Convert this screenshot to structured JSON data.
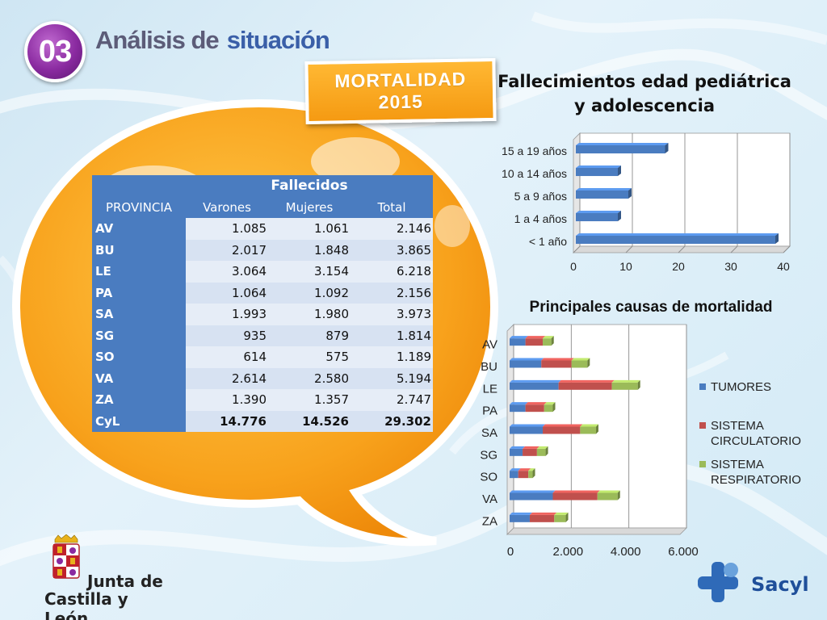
{
  "header": {
    "number": "03",
    "title_part1": "Análisis de",
    "title_part2": "situación"
  },
  "badge": {
    "line1": "MORTALIDAD",
    "line2": "2015"
  },
  "table": {
    "group_header": "Fallecidos",
    "col_province": "PROVINCIA",
    "col_men": "Varones",
    "col_women": "Mujeres",
    "col_total": "Total",
    "rows": [
      {
        "prov": "AV",
        "men": "1.085",
        "women": "1.061",
        "total": "2.146"
      },
      {
        "prov": "BU",
        "men": "2.017",
        "women": "1.848",
        "total": "3.865"
      },
      {
        "prov": "LE",
        "men": "3.064",
        "women": "3.154",
        "total": "6.218"
      },
      {
        "prov": "PA",
        "men": "1.064",
        "women": "1.092",
        "total": "2.156"
      },
      {
        "prov": "SA",
        "men": "1.993",
        "women": "1.980",
        "total": "3.973"
      },
      {
        "prov": "SG",
        "men": "935",
        "women": "879",
        "total": "1.814"
      },
      {
        "prov": "SO",
        "men": "614",
        "women": "575",
        "total": "1.189"
      },
      {
        "prov": "VA",
        "men": "2.614",
        "women": "2.580",
        "total": "5.194"
      },
      {
        "prov": "ZA",
        "men": "1.390",
        "women": "1.357",
        "total": "2.747"
      },
      {
        "prov": "CyL",
        "men": "14.776",
        "women": "14.526",
        "total": "29.302"
      }
    ]
  },
  "colors": {
    "tumores": "#4a7cc0",
    "circulatorio": "#c0504d",
    "respiratorio": "#9bbb59",
    "table_header": "#4a7cc0",
    "badge_orange": "#f59a12",
    "title_purple": "#8a2aa0"
  },
  "chart_data": [
    {
      "type": "bar",
      "orientation": "horizontal",
      "title_line1": "Fallecimientos edad pediátrica",
      "title_line2": "y adolescencia",
      "categories": [
        "15 a 19 años",
        "10 a 14 años",
        "5 a 9 años",
        "1 a 4 años",
        "< 1 año"
      ],
      "values": [
        17,
        8,
        10,
        8,
        38
      ],
      "xlim": [
        0,
        40
      ],
      "xticks": [
        "0",
        "10",
        "20",
        "30",
        "40"
      ],
      "grid": true,
      "legend": "none"
    },
    {
      "type": "bar",
      "orientation": "horizontal",
      "stacked": true,
      "title": "Principales causas de mortalidad",
      "categories": [
        "AV",
        "BU",
        "LE",
        "PA",
        "SA",
        "SG",
        "SO",
        "VA",
        "ZA"
      ],
      "series": [
        {
          "name": "TUMORES",
          "values": [
            550,
            1100,
            1700,
            550,
            1150,
            450,
            300,
            1500,
            700
          ]
        },
        {
          "name": "SISTEMA CIRCULATORIO",
          "values": [
            600,
            1050,
            1850,
            650,
            1300,
            500,
            350,
            1550,
            850
          ]
        },
        {
          "name": "SISTEMA RESPIRATORIO",
          "values": [
            300,
            550,
            900,
            300,
            550,
            300,
            150,
            700,
            400
          ]
        }
      ],
      "xlim": [
        0,
        6000
      ],
      "xticks": [
        "0",
        "2.000",
        "4.000",
        "6.000"
      ],
      "grid": true,
      "legend": "right"
    }
  ],
  "logos": {
    "jcyl_line1": "Junta de",
    "jcyl_line2": "Castilla y León",
    "sacyl": "Sacyl"
  }
}
